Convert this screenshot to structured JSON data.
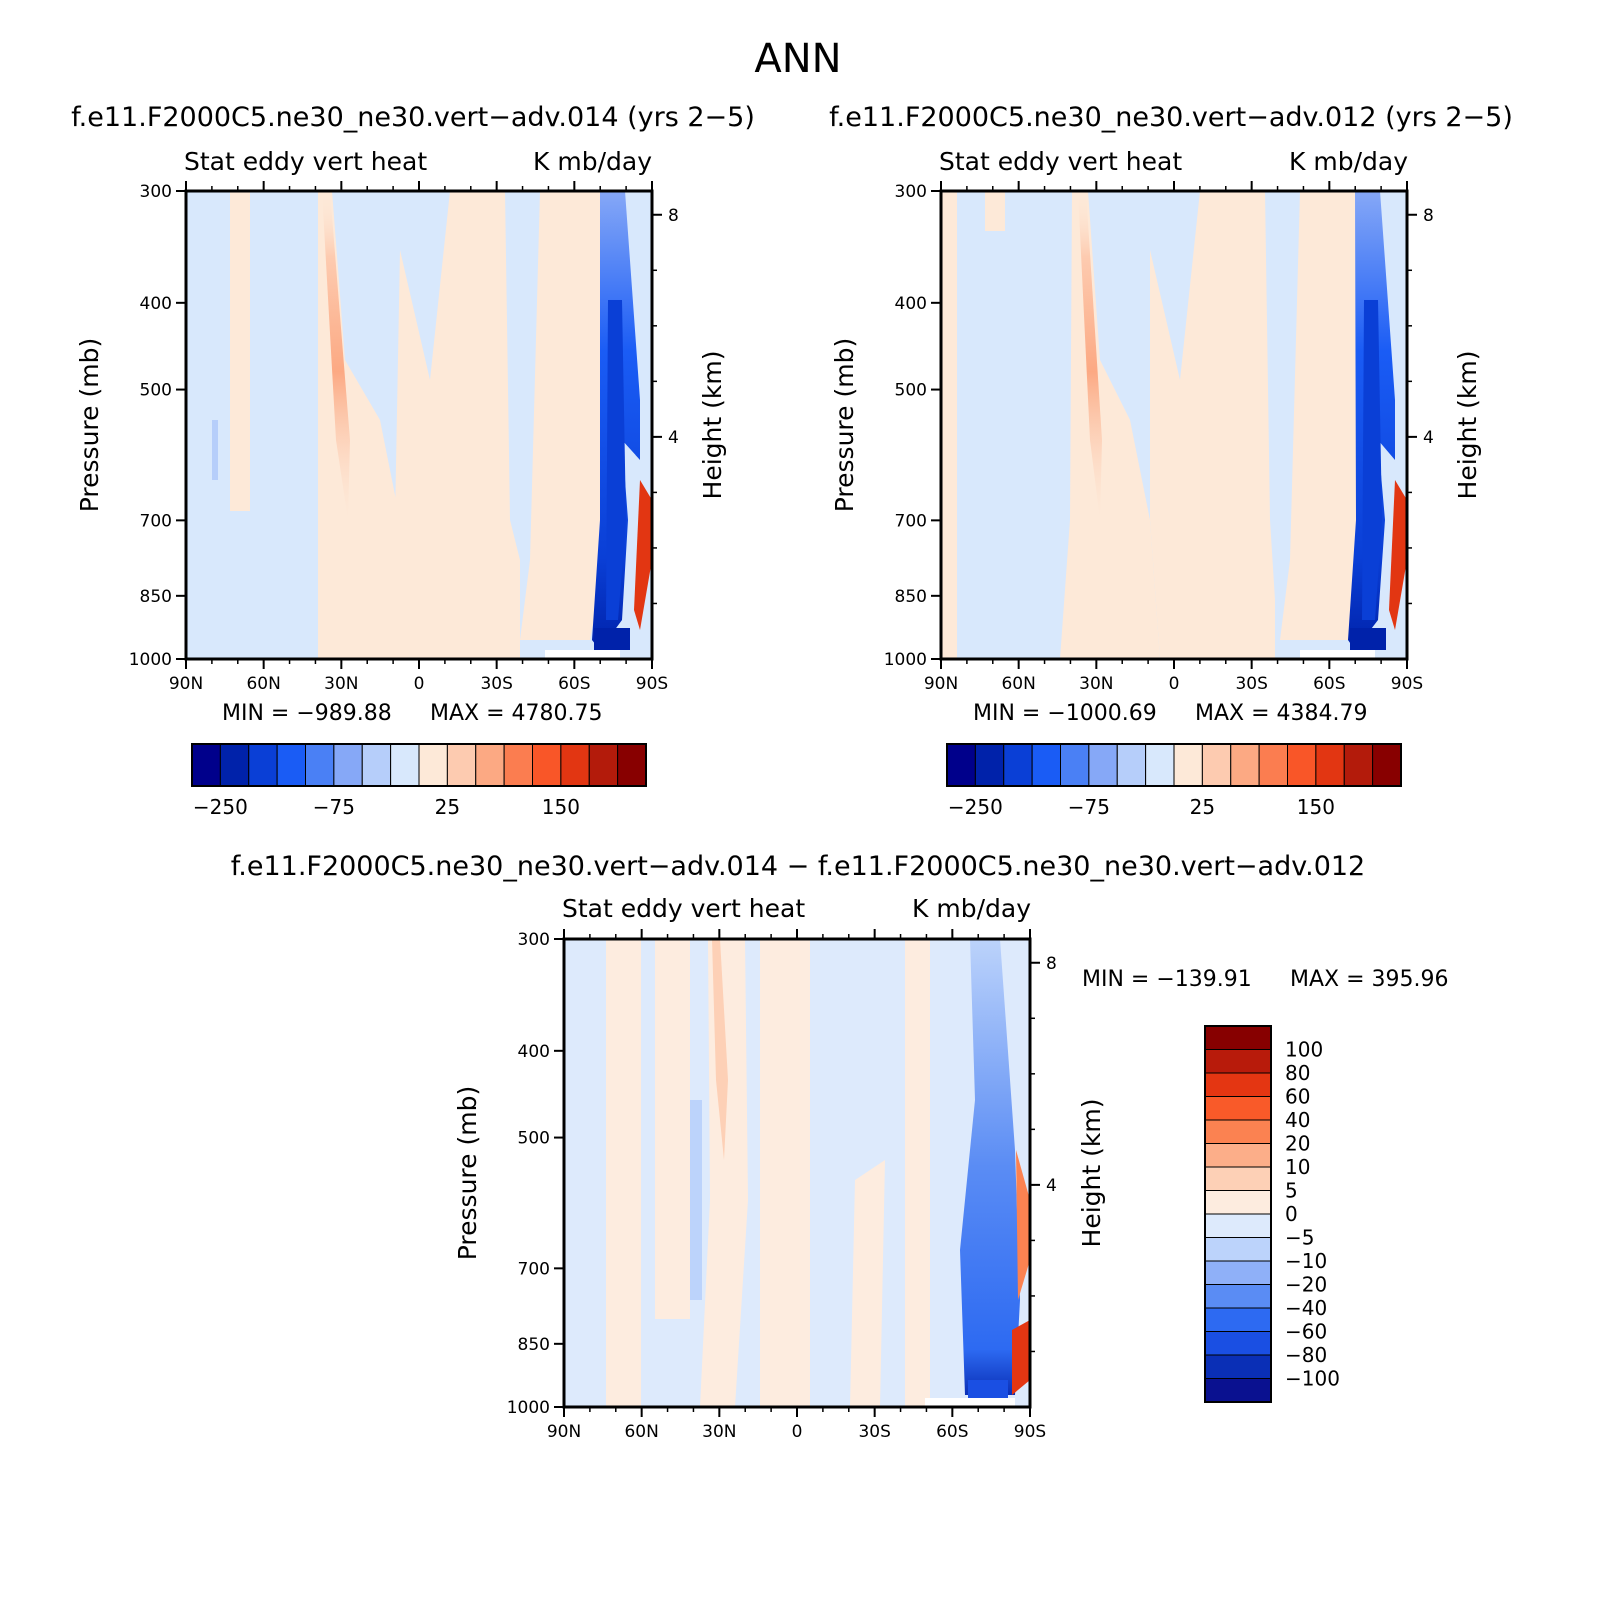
{
  "title": "ANN",
  "colors": {
    "palette_top": [
      "#00008b",
      "#0022aa",
      "#0a3fd6",
      "#1a5cf5",
      "#4a80f5",
      "#86a8f7",
      "#b6cefa",
      "#d8e8fc",
      "#fde9d8",
      "#fdcbb0",
      "#fca983",
      "#fb7d50",
      "#f95628",
      "#e23612",
      "#b31b0b",
      "#880000"
    ],
    "palette_diff": [
      "#0a1190",
      "#0a2fb6",
      "#1a4fe3",
      "#2d6af2",
      "#5a8cf4",
      "#8fb0f8",
      "#bcd3fb",
      "#ddeafc",
      "#fdecdf",
      "#fdd0b6",
      "#fcae89",
      "#fb8251",
      "#f95a29",
      "#e43612",
      "#b81b0b",
      "#870000"
    ]
  },
  "chart_data": [
    {
      "type": "heatmap",
      "title": "f.e11.F2000C5.ne30_ne30.vert-adv.014 (yrs 2-5)",
      "left_label": "Stat eddy vert heat",
      "right_label": "K mb/day",
      "xlabel": "",
      "ylabel": "Pressure (mb)",
      "y2label": "Height (km)",
      "xticks": [
        "90N",
        "60N",
        "30N",
        "0",
        "30S",
        "60S",
        "90S"
      ],
      "yticks": [
        "300",
        "400",
        "500",
        "700",
        "850",
        "1000"
      ],
      "y2ticks": [
        "8",
        "4"
      ],
      "min_label": "MIN = -989.88",
      "max_label": "MAX = 4780.75",
      "levels": [
        -250,
        -200,
        -150,
        -100,
        -75,
        -50,
        -25,
        0,
        25,
        50,
        75,
        100,
        150,
        200,
        250
      ],
      "colorbar_labels": [
        "-250",
        "-75",
        "25",
        "150"
      ]
    },
    {
      "type": "heatmap",
      "title": "f.e11.F2000C5.ne30_ne30.vert-adv.012 (yrs 2-5)",
      "left_label": "Stat eddy vert heat",
      "right_label": "K mb/day",
      "xlabel": "",
      "ylabel": "Pressure (mb)",
      "y2label": "Height (km)",
      "xticks": [
        "90N",
        "60N",
        "30N",
        "0",
        "30S",
        "60S",
        "90S"
      ],
      "yticks": [
        "300",
        "400",
        "500",
        "700",
        "850",
        "1000"
      ],
      "y2ticks": [
        "8",
        "4"
      ],
      "min_label": "MIN = -1000.69",
      "max_label": "MAX = 4384.79",
      "levels": [
        -250,
        -200,
        -150,
        -100,
        -75,
        -50,
        -25,
        0,
        25,
        50,
        75,
        100,
        150,
        200,
        250
      ],
      "colorbar_labels": [
        "-250",
        "-75",
        "25",
        "150"
      ]
    },
    {
      "type": "heatmap",
      "title": "f.e11.F2000C5.ne30_ne30.vert-adv.014 - f.e11.F2000C5.ne30_ne30.vert-adv.012",
      "left_label": "Stat eddy vert heat",
      "right_label": "K mb/day",
      "xlabel": "",
      "ylabel": "Pressure (mb)",
      "y2label": "Height (km)",
      "xticks": [
        "90N",
        "60N",
        "30N",
        "0",
        "30S",
        "60S",
        "90S"
      ],
      "yticks": [
        "300",
        "400",
        "500",
        "700",
        "850",
        "1000"
      ],
      "y2ticks": [
        "8",
        "4"
      ],
      "min_label": "MIN = -139.91",
      "max_label": "MAX = 395.96",
      "levels": [
        -100,
        -80,
        -60,
        -40,
        -20,
        -10,
        -5,
        0,
        5,
        10,
        20,
        40,
        60,
        80,
        100
      ],
      "colorbar_labels": [
        "100",
        "80",
        "60",
        "40",
        "20",
        "10",
        "5",
        "0",
        "-5",
        "-10",
        "-20",
        "-40",
        "-60",
        "-80",
        "-100"
      ]
    }
  ]
}
